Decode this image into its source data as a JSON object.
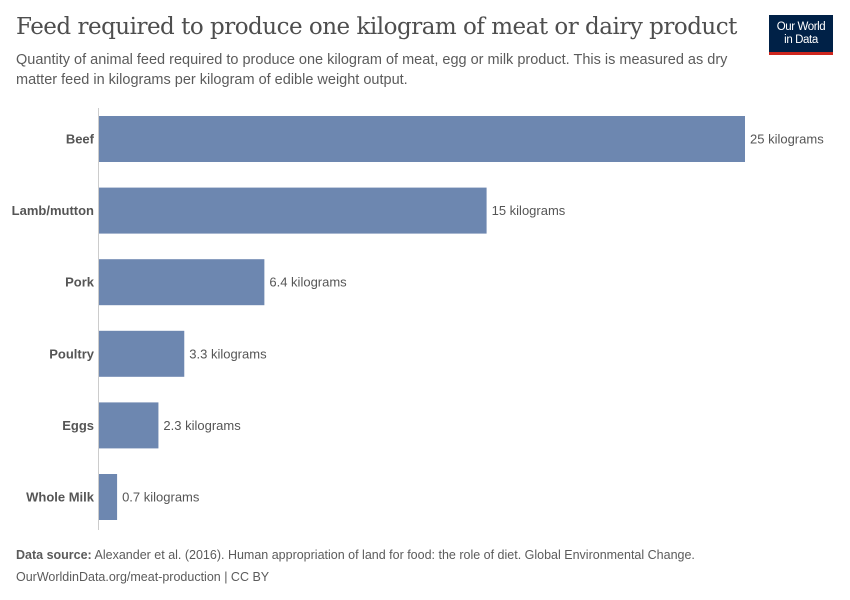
{
  "header": {
    "title": "Feed required to produce one kilogram of meat or dairy product",
    "subtitle": "Quantity of animal feed required to produce one kilogram of meat, egg or milk product. This is measured as dry matter feed in kilograms per kilogram of edible weight output.",
    "logo": "Our World in Data"
  },
  "footer": {
    "source_label": "Data source:",
    "source": "Alexander et al. (2016). Human appropriation of land for food: the role of diet. Global Environmental Change.",
    "url": "OurWorldinData.org/meat-production | CC BY"
  },
  "chart_data": {
    "type": "bar",
    "orientation": "horizontal",
    "categories": [
      "Beef",
      "Lamb/mutton",
      "Pork",
      "Poultry",
      "Eggs",
      "Whole Milk"
    ],
    "values": [
      25,
      15,
      6.4,
      3.3,
      2.3,
      0.7
    ],
    "data_labels": [
      "25 kilograms",
      "15 kilograms",
      "6.4 kilograms",
      "3.3 kilograms",
      "2.3 kilograms",
      "0.7 kilograms"
    ],
    "unit": "kilograms",
    "bar_color": "#6d87b0",
    "grid": false
  }
}
